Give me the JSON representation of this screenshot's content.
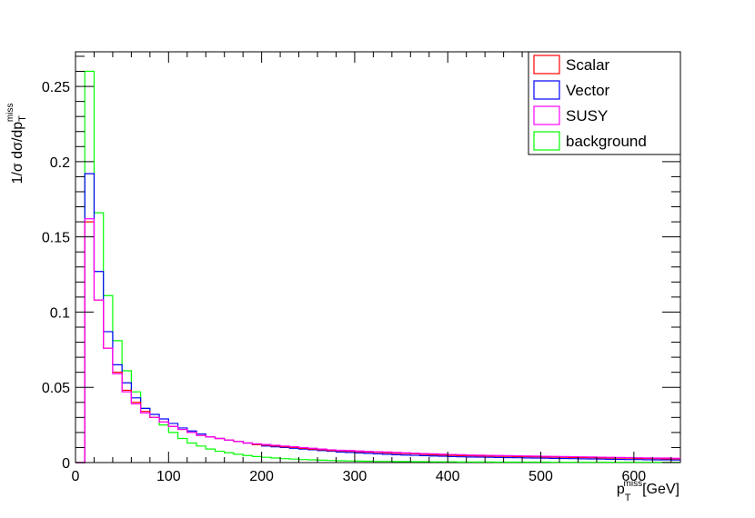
{
  "chart_data": {
    "type": "histogram-step",
    "xlabel": {
      "main": "p",
      "sub": "T",
      "sup": "miss",
      "unit": "[GeV]"
    },
    "ylabel": {
      "main": "1/σ dσ/dp",
      "sub": "T",
      "sup": "miss"
    },
    "xlim": [
      0,
      650
    ],
    "ylim": [
      0,
      0.273
    ],
    "bin_width": 10,
    "x_ticks": [
      "0",
      "100",
      "200",
      "300",
      "400",
      "500",
      "600"
    ],
    "y_ticks": [
      "0",
      "0.05",
      "0.1",
      "0.15",
      "0.2",
      "0.25"
    ],
    "legend_position": "top-right",
    "series": [
      {
        "name": "Scalar",
        "color": "#ff0000",
        "values": [
          0,
          0.16,
          0.108,
          0.076,
          0.06,
          0.048,
          0.04,
          0.034,
          0.03,
          0.027,
          0.024,
          0.022,
          0.02,
          0.018,
          0.017,
          0.016,
          0.015,
          0.014,
          0.013,
          0.012,
          0.0115,
          0.011,
          0.0105,
          0.01,
          0.0095,
          0.009,
          0.0085,
          0.008,
          0.0078,
          0.0075,
          0.0072,
          0.007,
          0.0068,
          0.0065,
          0.0062,
          0.006,
          0.0058,
          0.0055,
          0.0052,
          0.005,
          0.0048,
          0.0046,
          0.0045,
          0.0044,
          0.0043,
          0.0042,
          0.0041,
          0.004,
          0.0039,
          0.0038,
          0.0037,
          0.0036,
          0.0035,
          0.0034,
          0.0033,
          0.0032,
          0.0031,
          0.003,
          0.003,
          0.0029,
          0.0028,
          0.0027,
          0.0026,
          0.0025,
          0.0025
        ]
      },
      {
        "name": "Vector",
        "color": "#0000ff",
        "values": [
          0,
          0.192,
          0.127,
          0.087,
          0.065,
          0.053,
          0.043,
          0.036,
          0.032,
          0.029,
          0.026,
          0.023,
          0.021,
          0.019,
          0.017,
          0.016,
          0.015,
          0.014,
          0.013,
          0.012,
          0.011,
          0.0105,
          0.01,
          0.0095,
          0.009,
          0.0085,
          0.008,
          0.0075,
          0.007,
          0.0067,
          0.0064,
          0.0061,
          0.0058,
          0.0055,
          0.0052,
          0.005,
          0.0048,
          0.0046,
          0.0044,
          0.0042,
          0.004,
          0.0038,
          0.0037,
          0.0036,
          0.0035,
          0.0034,
          0.0033,
          0.0032,
          0.0031,
          0.003,
          0.0029,
          0.0028,
          0.0027,
          0.0026,
          0.0025,
          0.0024,
          0.0023,
          0.0022,
          0.0021,
          0.002,
          0.002,
          0.0019,
          0.0018,
          0.0018,
          0.0017
        ]
      },
      {
        "name": "SUSY",
        "color": "#ff00ff",
        "values": [
          0,
          0.162,
          0.108,
          0.076,
          0.059,
          0.047,
          0.039,
          0.033,
          0.03,
          0.027,
          0.024,
          0.022,
          0.02,
          0.018,
          0.017,
          0.016,
          0.015,
          0.014,
          0.013,
          0.0125,
          0.012,
          0.0115,
          0.011,
          0.0105,
          0.01,
          0.0095,
          0.009,
          0.0085,
          0.0082,
          0.008,
          0.0077,
          0.0074,
          0.0072,
          0.007,
          0.0067,
          0.0065,
          0.0062,
          0.006,
          0.0058,
          0.0056,
          0.0054,
          0.0052,
          0.005,
          0.0049,
          0.0048,
          0.0047,
          0.0046,
          0.0045,
          0.0044,
          0.0043,
          0.0042,
          0.0041,
          0.004,
          0.0039,
          0.0038,
          0.0037,
          0.0036,
          0.0035,
          0.0034,
          0.0033,
          0.0032,
          0.0031,
          0.003,
          0.003,
          0.0029
        ]
      },
      {
        "name": "background",
        "color": "#00ff00",
        "values": [
          0,
          0.26,
          0.166,
          0.111,
          0.081,
          0.061,
          0.047,
          0.036,
          0.03,
          0.025,
          0.02,
          0.016,
          0.013,
          0.011,
          0.009,
          0.0075,
          0.0065,
          0.0055,
          0.0047,
          0.004,
          0.0035,
          0.003,
          0.0026,
          0.0023,
          0.002,
          0.0018,
          0.0016,
          0.0014,
          0.0012,
          0.0011,
          0.001,
          0.0009,
          0.0008,
          0.0008,
          0.0007,
          0.0007,
          0.0006,
          0.0006,
          0.0005,
          0.0005,
          0.0005,
          0.0004,
          0.0004,
          0.0004,
          0.0004,
          0.0003,
          0.0003,
          0.0003,
          0.0003,
          0.0003,
          0.0003,
          0.0002,
          0.0002,
          0.0002,
          0.0002,
          0.0002,
          0.0002,
          0.0002,
          0.0002,
          0.0002,
          0.0002,
          0.0002,
          0.0002,
          0.0002,
          0.0002
        ]
      }
    ]
  }
}
